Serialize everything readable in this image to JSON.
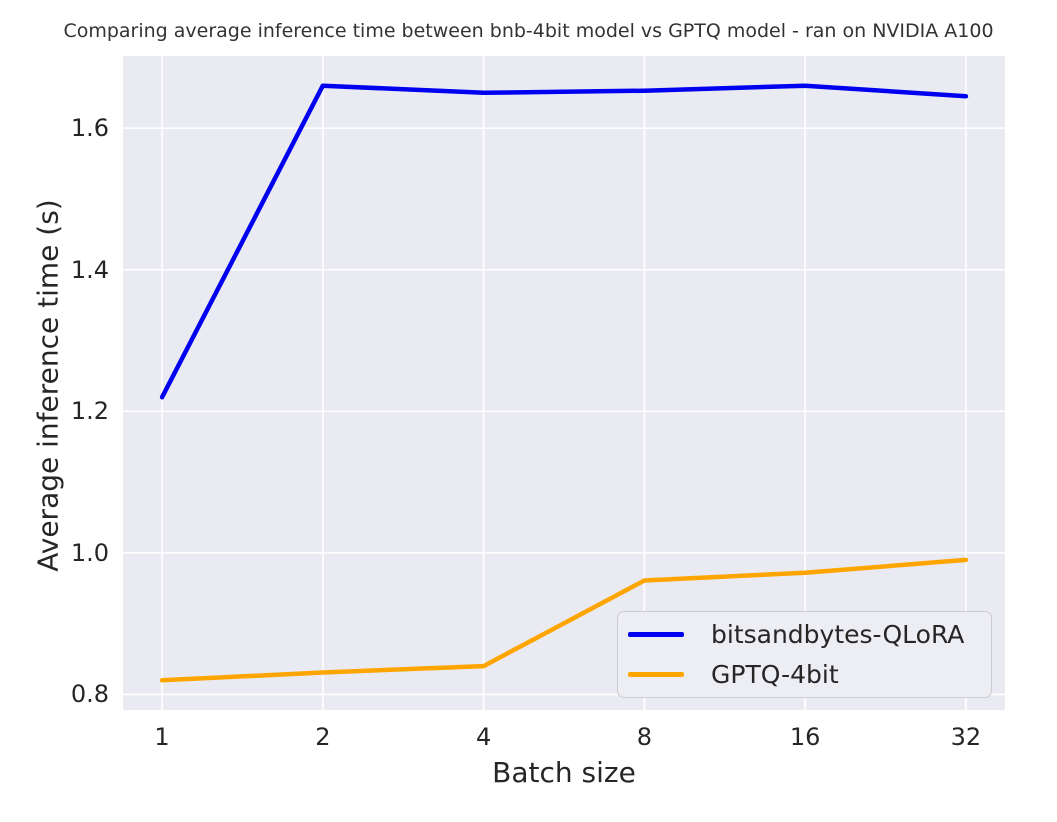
{
  "title": "Comparing  average inference time between bnb-4bit model vs GPTQ model - ran on NVIDIA A100",
  "chart_data": {
    "type": "line",
    "x": [
      1,
      2,
      4,
      8,
      16,
      32
    ],
    "x_scale": "log2",
    "x_tick_labels": [
      "1",
      "2",
      "4",
      "8",
      "16",
      "32"
    ],
    "y_ticks": [
      0.8,
      1.0,
      1.2,
      1.4,
      1.6
    ],
    "y_tick_labels": [
      "0.8",
      "1.0",
      "1.2",
      "1.4",
      "1.6"
    ],
    "xlim_log2": [
      -0.243,
      5.243
    ],
    "ylim": [
      0.778,
      1.702
    ],
    "xlabel": "Batch size",
    "ylabel": "Average inference time (s)",
    "grid": true,
    "legend_position": "lower right",
    "series": [
      {
        "name": "bitsandbytes-QLoRA",
        "color": "#0000f0",
        "values": [
          1.22,
          1.66,
          1.65,
          1.653,
          1.66,
          1.645
        ]
      },
      {
        "name": "GPTQ-4bit",
        "color": "#ffa500",
        "values": [
          0.82,
          0.831,
          0.84,
          0.961,
          0.972,
          0.99
        ]
      }
    ],
    "colors": {
      "plot_background": "#eaeaf2",
      "gridline": "#ffffff",
      "text": "#262626",
      "legend_background": "#ededf4",
      "legend_border": "#cccccc",
      "figure_background": "#ffffff"
    }
  }
}
